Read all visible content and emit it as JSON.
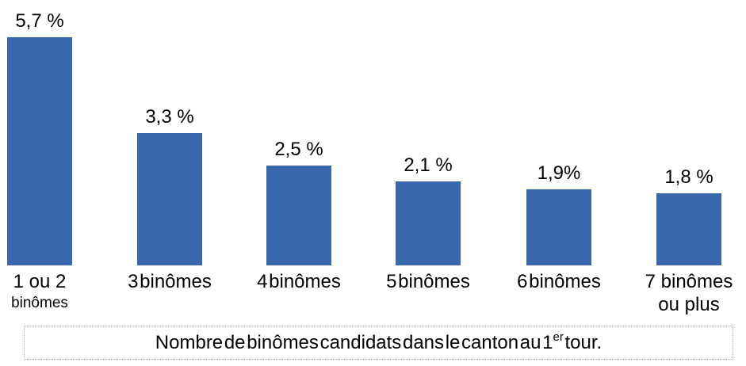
{
  "chart_data": {
    "type": "bar",
    "title": "",
    "categories": [
      "1 ou 2 binômes",
      "3 binômes",
      "4 binômes",
      "5 binômes",
      "6 binômes",
      "7 binômes ou plus"
    ],
    "category_lines": [
      [
        "1 ou 2",
        "binômes"
      ],
      [
        "3 binômes",
        ""
      ],
      [
        "4 binômes",
        ""
      ],
      [
        "5 binômes",
        ""
      ],
      [
        "6 binômes",
        ""
      ],
      [
        "7 binômes",
        "ou plus"
      ]
    ],
    "values": [
      5.7,
      3.3,
      2.5,
      2.1,
      1.9,
      1.8
    ],
    "value_labels": [
      "5,7 %",
      "3,3 %",
      "2,5 %",
      "2,1 %",
      "1,9%",
      "1,8 %"
    ],
    "bar_color": "#3A68AE",
    "label_color": "#000000",
    "ylim": [
      0,
      6
    ],
    "grid": false,
    "legend": "none",
    "caption": "Nombre de binômes candidats dans le canton au 1er tour."
  },
  "caption": {
    "prefix": "Nombre de binômes candidats dans le canton au 1",
    "sup": "er",
    "suffix": " tour."
  }
}
